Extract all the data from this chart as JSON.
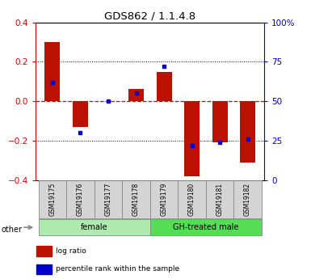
{
  "title": "GDS862 / 1.1.4.8",
  "samples": [
    "GSM19175",
    "GSM19176",
    "GSM19177",
    "GSM19178",
    "GSM19179",
    "GSM19180",
    "GSM19181",
    "GSM19182"
  ],
  "log_ratio": [
    0.3,
    -0.13,
    0.0,
    0.06,
    0.15,
    -0.38,
    -0.21,
    -0.31
  ],
  "percentile_rank": [
    62,
    30,
    50,
    55,
    72,
    22,
    24,
    26
  ],
  "groups": [
    {
      "label": "female",
      "color": "#aeeaae",
      "start": 0,
      "end": 4
    },
    {
      "label": "GH-treated male",
      "color": "#55dd55",
      "start": 4,
      "end": 8
    }
  ],
  "ylim_left": [
    -0.4,
    0.4
  ],
  "ylim_right": [
    0,
    100
  ],
  "yticks_left": [
    -0.4,
    -0.2,
    0.0,
    0.2,
    0.4
  ],
  "yticks_right": [
    0,
    25,
    50,
    75,
    100
  ],
  "ytick_labels_right": [
    "0",
    "25",
    "50",
    "75",
    "100%"
  ],
  "bar_color": "#bb1100",
  "dot_color": "#0000cc",
  "zero_line_color": "#cc0000",
  "grid_color": "black",
  "left_tick_color": "#cc0000",
  "right_tick_color": "#0000cc",
  "legend_items": [
    {
      "label": "log ratio",
      "color": "#bb1100"
    },
    {
      "label": "percentile rank within the sample",
      "color": "#0000cc"
    }
  ],
  "other_label": "other",
  "bar_width": 0.55
}
